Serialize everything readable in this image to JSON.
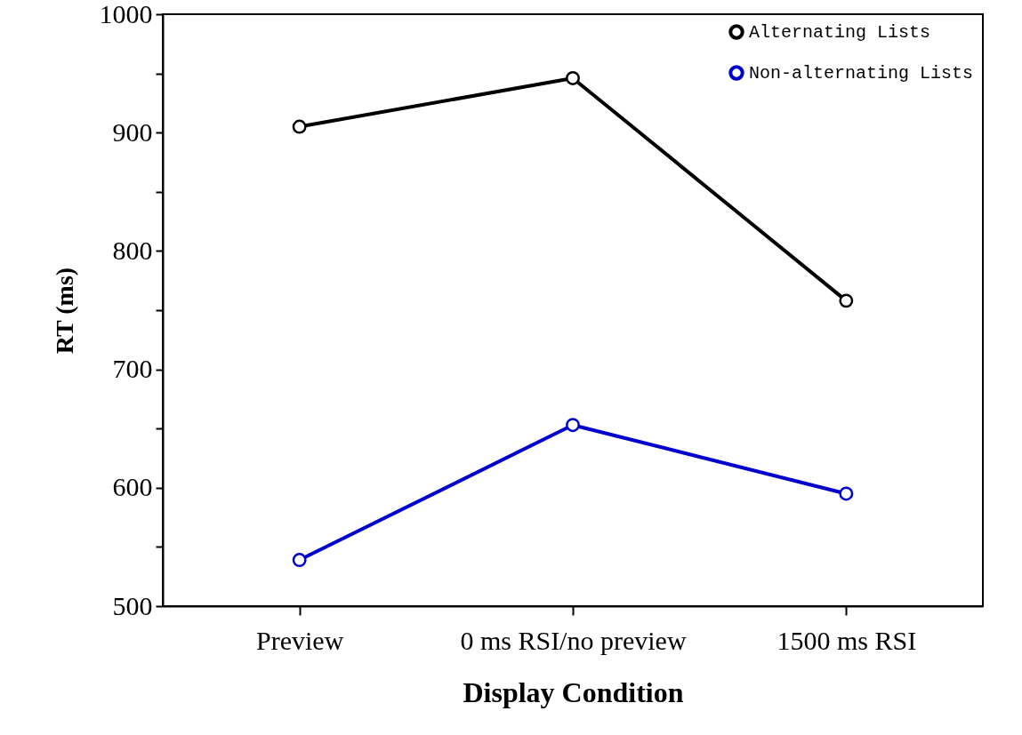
{
  "chart_data": {
    "type": "line",
    "xlabel": "Display Condition",
    "ylabel": "RT (ms)",
    "categories": [
      "Preview",
      "0 ms RSI/no preview",
      "1500 ms RSI"
    ],
    "series": [
      {
        "name": "Alternating Lists",
        "color": "#000000",
        "values": [
          905,
          946,
          758
        ]
      },
      {
        "name": "Non-alternating Lists",
        "color": "#0000cc",
        "values": [
          539,
          653,
          595
        ]
      }
    ],
    "ylim": [
      500,
      1000
    ],
    "yticks": [
      500,
      {
        "value": 550,
        "label": null
      },
      600,
      {
        "value": 650,
        "label": null
      },
      700,
      {
        "value": 750,
        "label": null
      },
      800,
      {
        "value": 850,
        "label": null
      },
      900,
      {
        "value": 950,
        "label": null
      },
      1000
    ],
    "legend": "top right",
    "marker": "circle",
    "line_style": "solid"
  }
}
